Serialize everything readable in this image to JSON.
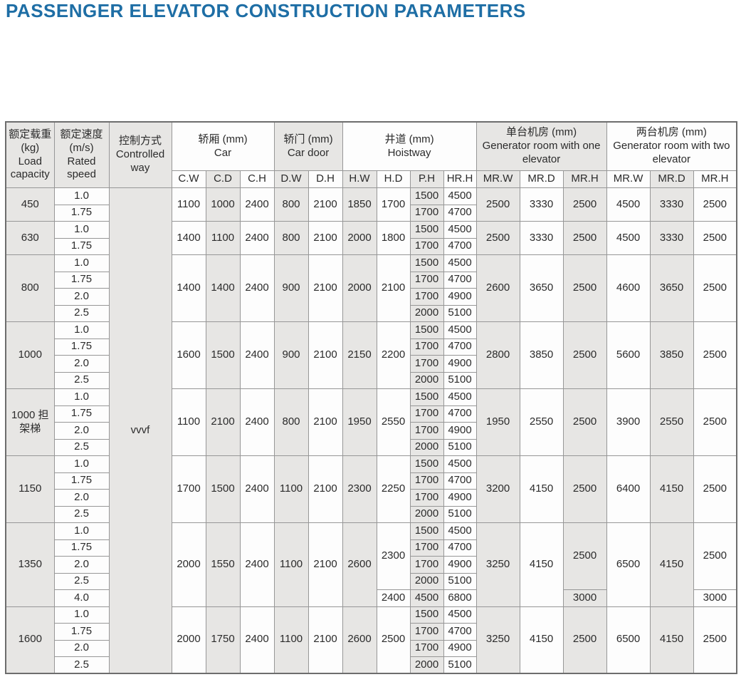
{
  "title": "PASSENGER ELEVATOR CONSTRUCTION PARAMETERS",
  "colors": {
    "title_blue": "#1e6ea5",
    "shaded_cell": "#e7e6e4",
    "grid_line": "#979797"
  },
  "table": {
    "header": {
      "load": "额定载重\n(kg)\nLoad capacity",
      "speed": "额定速度\n(m/s)\nRated speed",
      "control": "控制方式\nControlled way",
      "car": "轿厢 (mm)\nCar",
      "car_door": "轿门 (mm)\nCar door",
      "hoistway": "井道 (mm)\nHoistway",
      "one_elevator": "单台机房 (mm)\nGenerator room with one elevator",
      "two_elevator": "两台机房 (mm)\nGenerator room with two elevator"
    },
    "sub_headers": [
      "C.W",
      "C.D",
      "C.H",
      "D.W",
      "D.H",
      "H.W",
      "H.D",
      "P.H",
      "HR.H",
      "MR.W",
      "MR.D",
      "MR.H",
      "MR.W",
      "MR.D",
      "MR.H"
    ],
    "control_value": "vvvf",
    "blocks": [
      {
        "load": "450",
        "speeds": [
          "1.0",
          "1.75"
        ],
        "cw": "1100",
        "cd": "1000",
        "ch": "2400",
        "dw": "800",
        "dh": "2100",
        "hw": "1850",
        "hd": "1700",
        "ph": [
          "1500",
          "1700"
        ],
        "hrh": [
          "4500",
          "4700"
        ],
        "m1w": "2500",
        "m1d": "3330",
        "m1h": "2500",
        "m2w": "4500",
        "m2d": "3330",
        "m2h": "2500"
      },
      {
        "load": "630",
        "speeds": [
          "1.0",
          "1.75"
        ],
        "cw": "1400",
        "cd": "1100",
        "ch": "2400",
        "dw": "800",
        "dh": "2100",
        "hw": "2000",
        "hd": "1800",
        "ph": [
          "1500",
          "1700"
        ],
        "hrh": [
          "4500",
          "4700"
        ],
        "m1w": "2500",
        "m1d": "3330",
        "m1h": "2500",
        "m2w": "4500",
        "m2d": "3330",
        "m2h": "2500"
      },
      {
        "load": "800",
        "speeds": [
          "1.0",
          "1.75",
          "2.0",
          "2.5"
        ],
        "cw": "1400",
        "cd": "1400",
        "ch": "2400",
        "dw": "900",
        "dh": "2100",
        "hw": "2000",
        "hd": "2100",
        "ph": [
          "1500",
          "1700",
          "1700",
          "2000"
        ],
        "hrh": [
          "4500",
          "4700",
          "4900",
          "5100"
        ],
        "m1w": "2600",
        "m1d": "3650",
        "m1h": "2500",
        "m2w": "4600",
        "m2d": "3650",
        "m2h": "2500"
      },
      {
        "load": "1000",
        "speeds": [
          "1.0",
          "1.75",
          "2.0",
          "2.5"
        ],
        "cw": "1600",
        "cd": "1500",
        "ch": "2400",
        "dw": "900",
        "dh": "2100",
        "hw": "2150",
        "hd": "2200",
        "ph": [
          "1500",
          "1700",
          "1700",
          "2000"
        ],
        "hrh": [
          "4500",
          "4700",
          "4900",
          "5100"
        ],
        "m1w": "2800",
        "m1d": "3850",
        "m1h": "2500",
        "m2w": "5600",
        "m2d": "3850",
        "m2h": "2500"
      },
      {
        "load": "1000 担架梯",
        "speeds": [
          "1.0",
          "1.75",
          "2.0",
          "2.5"
        ],
        "cw": "1100",
        "cd": "2100",
        "ch": "2400",
        "dw": "800",
        "dh": "2100",
        "hw": "1950",
        "hd": "2550",
        "ph": [
          "1500",
          "1700",
          "1700",
          "2000"
        ],
        "hrh": [
          "4500",
          "4700",
          "4900",
          "5100"
        ],
        "m1w": "1950",
        "m1d": "2550",
        "m1h": "2500",
        "m2w": "3900",
        "m2d": "2550",
        "m2h": "2500"
      },
      {
        "load": "1150",
        "speeds": [
          "1.0",
          "1.75",
          "2.0",
          "2.5"
        ],
        "cw": "1700",
        "cd": "1500",
        "ch": "2400",
        "dw": "1100",
        "dh": "2100",
        "hw": "2300",
        "hd": "2250",
        "ph": [
          "1500",
          "1700",
          "1700",
          "2000"
        ],
        "hrh": [
          "4500",
          "4700",
          "4900",
          "5100"
        ],
        "m1w": "3200",
        "m1d": "4150",
        "m1h": "2500",
        "m2w": "6400",
        "m2d": "4150",
        "m2h": "2500"
      },
      {
        "load": "1350",
        "speeds": [
          "1.0",
          "1.75",
          "2.0",
          "2.5",
          "4.0"
        ],
        "cw": "2000",
        "cd": "1550",
        "ch": "2400",
        "dw": "1100",
        "dh": "2100",
        "hw": "2600",
        "hd": [
          [
            "2300",
            4
          ],
          [
            "2400",
            1
          ]
        ],
        "ph": [
          "1500",
          "1700",
          "1700",
          "2000",
          "4500"
        ],
        "hrh": [
          "4500",
          "4700",
          "4900",
          "5100",
          "6800"
        ],
        "m1w": "3250",
        "m1d": "4150",
        "m1h": [
          [
            "2500",
            4
          ],
          [
            "3000",
            1
          ]
        ],
        "m2w": "6500",
        "m2d": "4150",
        "m2h": [
          [
            "2500",
            4
          ],
          [
            "3000",
            1
          ]
        ]
      },
      {
        "load": "1600",
        "speeds": [
          "1.0",
          "1.75",
          "2.0",
          "2.5"
        ],
        "cw": "2000",
        "cd": "1750",
        "ch": "2400",
        "dw": "1100",
        "dh": "2100",
        "hw": "2600",
        "hd": "2500",
        "ph": [
          "1500",
          "1700",
          "1700",
          "2000"
        ],
        "hrh": [
          "4500",
          "4700",
          "4900",
          "5100"
        ],
        "m1w": "3250",
        "m1d": "4150",
        "m1h": "2500",
        "m2w": "6500",
        "m2d": "4150",
        "m2h": "2500"
      }
    ]
  }
}
